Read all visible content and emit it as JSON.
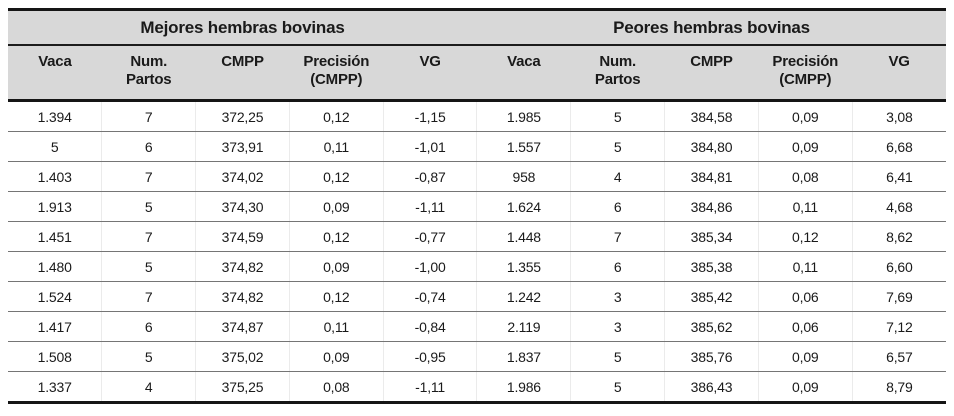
{
  "table": {
    "groups": [
      {
        "title": "Mejores hembras bovinas"
      },
      {
        "title": "Peores hembras bovinas"
      }
    ],
    "columns": [
      {
        "label": "Vaca",
        "sub": ""
      },
      {
        "label": "Num.",
        "sub": "Partos"
      },
      {
        "label": "CMPP",
        "sub": ""
      },
      {
        "label": "Precisión",
        "sub": "(CMPP)"
      },
      {
        "label": "VG",
        "sub": ""
      }
    ],
    "rows": [
      [
        "1.394",
        "7",
        "372,25",
        "0,12",
        "-1,15",
        "1.985",
        "5",
        "384,58",
        "0,09",
        "3,08"
      ],
      [
        "5",
        "6",
        "373,91",
        "0,11",
        "-1,01",
        "1.557",
        "5",
        "384,80",
        "0,09",
        "6,68"
      ],
      [
        "1.403",
        "7",
        "374,02",
        "0,12",
        "-0,87",
        "958",
        "4",
        "384,81",
        "0,08",
        "6,41"
      ],
      [
        "1.913",
        "5",
        "374,30",
        "0,09",
        "-1,11",
        "1.624",
        "6",
        "384,86",
        "0,11",
        "4,68"
      ],
      [
        "1.451",
        "7",
        "374,59",
        "0,12",
        "-0,77",
        "1.448",
        "7",
        "385,34",
        "0,12",
        "8,62"
      ],
      [
        "1.480",
        "5",
        "374,82",
        "0,09",
        "-1,00",
        "1.355",
        "6",
        "385,38",
        "0,11",
        "6,60"
      ],
      [
        "1.524",
        "7",
        "374,82",
        "0,12",
        "-0,74",
        "1.242",
        "3",
        "385,42",
        "0,06",
        "7,69"
      ],
      [
        "1.417",
        "6",
        "374,87",
        "0,11",
        "-0,84",
        "2.119",
        "3",
        "385,62",
        "0,06",
        "7,12"
      ],
      [
        "1.508",
        "5",
        "375,02",
        "0,09",
        "-0,95",
        "1.837",
        "5",
        "385,76",
        "0,09",
        "6,57"
      ],
      [
        "1.337",
        "4",
        "375,25",
        "0,08",
        "-1,11",
        "1.986",
        "5",
        "386,43",
        "0,09",
        "8,79"
      ]
    ],
    "colors": {
      "header_bg": "#d8d8d8",
      "border_dark": "#151515",
      "row_line": "#757575",
      "text": "#1a1a1a"
    }
  }
}
